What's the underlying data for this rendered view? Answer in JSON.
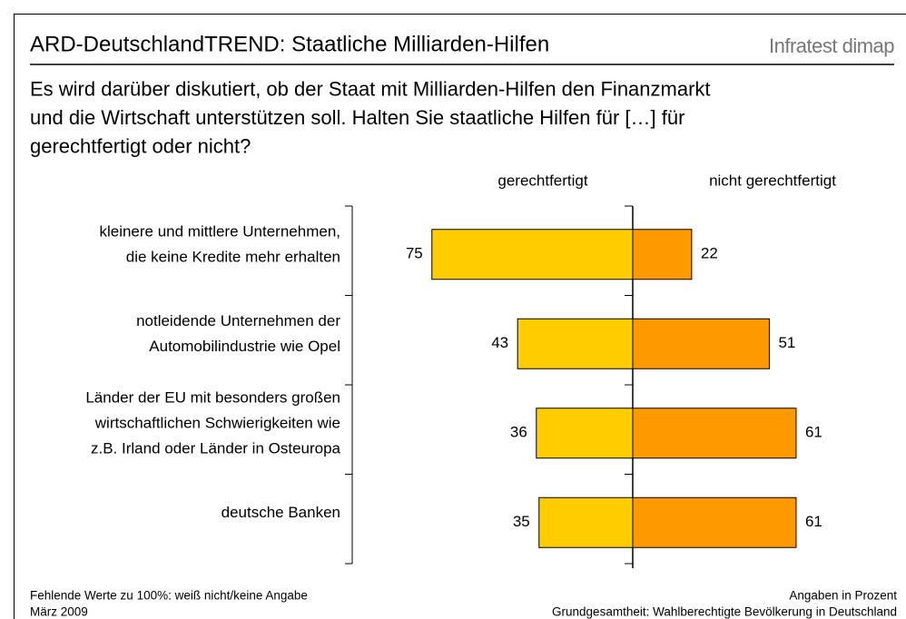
{
  "chart_data": {
    "type": "diverging_bar",
    "title": "ARD-DeutschlandTREND: Staatliche Milliarden-Hilfen",
    "source": "Infratest dimap",
    "subtitle": "Es wird darüber diskutiert, ob der Staat mit Milliarden-Hilfen den Finanzmarkt\nund die Wirtschaft unterstützen soll. Halten Sie staatliche Hilfen für […] für\ngerechtfertigt oder nicht?",
    "categories": [
      "kleinere und mittlere Unternehmen,\ndie keine Kredite mehr erhalten",
      "notleidende Unternehmen der\nAutomobilindustrie wie Opel",
      "Länder der EU mit besonders großen\nwirtschaftlichen Schwierigkeiten wie\nz.B. Irland oder Länder in Osteuropa",
      "deutsche Banken"
    ],
    "series": [
      {
        "name": "gerechtfertigt",
        "color": "#FFCC00",
        "values": [
          75,
          43,
          36,
          35
        ]
      },
      {
        "name": "nicht gerechtfertigt",
        "color": "#FF9900",
        "values": [
          22,
          51,
          61,
          61
        ]
      }
    ],
    "footnotes_left": [
      "Fehlende Werte zu 100%: weiß nicht/keine Angabe",
      "März 2009"
    ],
    "footnotes_right": [
      "Angaben in Prozent",
      "Grundgesamtheit: Wahlberechtigte Bevölkerung in Deutschland"
    ]
  }
}
